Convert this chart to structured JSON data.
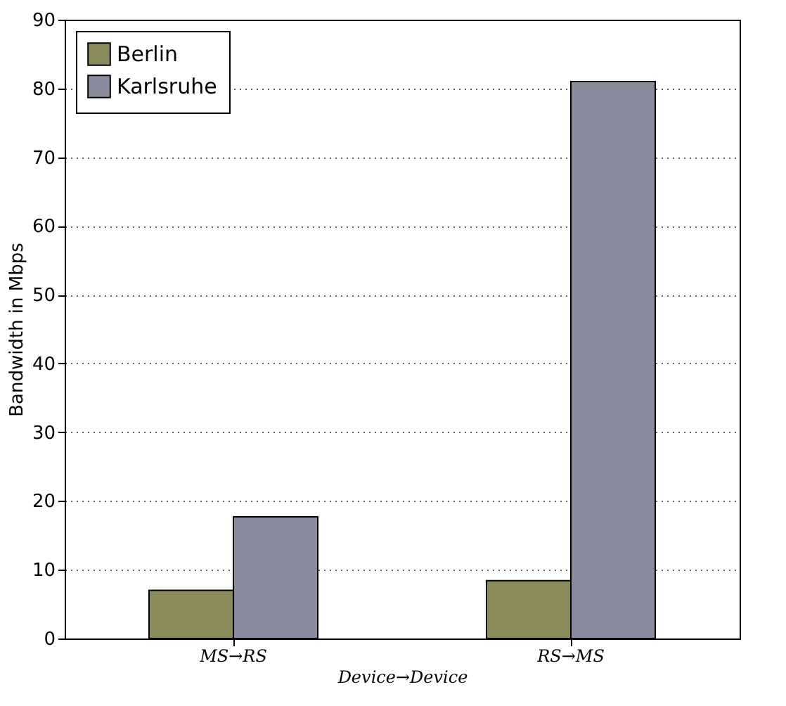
{
  "chart_data": {
    "type": "bar",
    "xlabel": "Device→Device",
    "ylabel": "Bandwidth in Mbps",
    "categories": [
      "MS→RS",
      "RS→MS"
    ],
    "series": [
      {
        "name": "Berlin",
        "color": "#8b8a5a",
        "values": [
          7,
          8.4
        ]
      },
      {
        "name": "Karlsruhe",
        "color": "#8a8b9c",
        "values": [
          17.7,
          81
        ]
      }
    ],
    "ylim": [
      0,
      90
    ],
    "yticks": [
      0,
      10,
      20,
      30,
      40,
      50,
      60,
      70,
      80,
      90
    ],
    "grid": "y",
    "legend": "top left"
  }
}
